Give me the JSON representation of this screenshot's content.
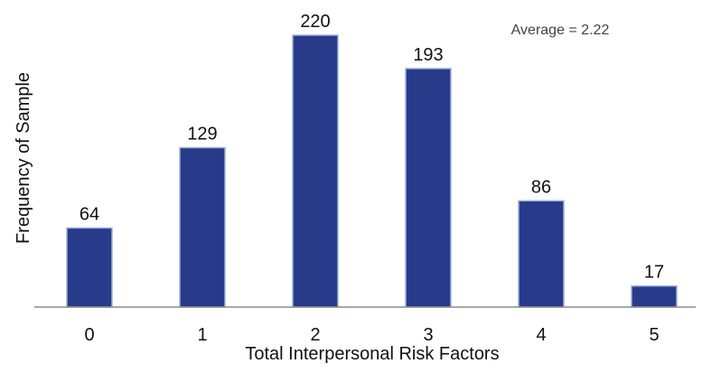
{
  "chart_data": {
    "type": "bar",
    "categories": [
      "0",
      "1",
      "2",
      "3",
      "4",
      "5"
    ],
    "values": [
      64,
      129,
      220,
      193,
      86,
      17
    ],
    "data_labels": [
      "64",
      "129",
      "220",
      "193",
      "86",
      "17"
    ],
    "title": "",
    "xlabel": "Total Interpersonal Risk Factors",
    "ylabel": "Frequency of Sample",
    "ylim": [
      0,
      220
    ],
    "grid": false,
    "legend": "none",
    "bar_color": "#283a8a",
    "bar_edge_color": "#9fb0d8",
    "annotation": "Average = 2.22"
  }
}
